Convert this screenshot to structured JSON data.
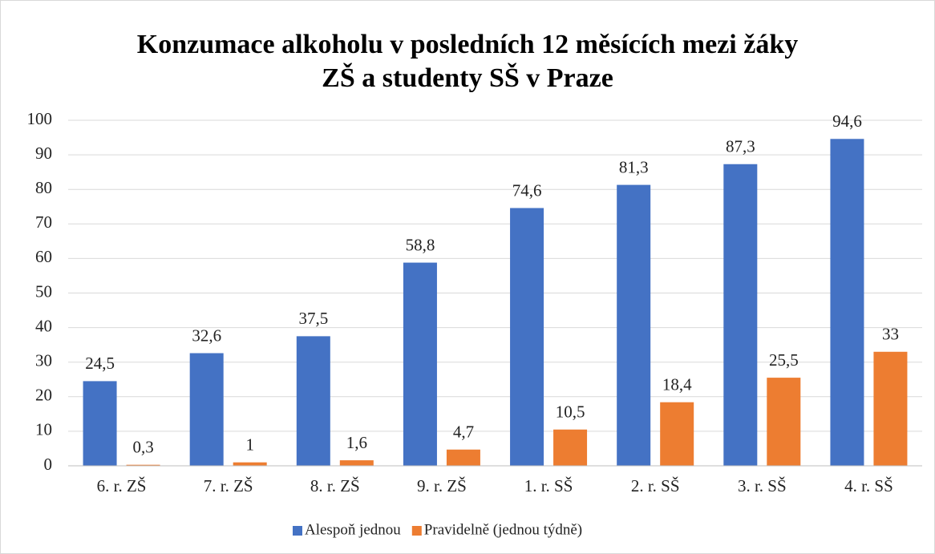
{
  "chart_data": {
    "type": "bar",
    "title": [
      "Konzumace alkoholu v posledních 12 měsících mezi žáky",
      "ZŠ a studenty SŠ v Praze"
    ],
    "categories": [
      "6. r. ZŠ",
      "7. r. ZŠ",
      "8. r. ZŠ",
      "9. r. ZŠ",
      "1. r. SŠ",
      "2. r. SŠ",
      "3. r. SŠ",
      "4. r. SŠ"
    ],
    "series": [
      {
        "name": "Alespoň jednou",
        "color": "#4472c4",
        "values": [
          24.5,
          32.6,
          37.5,
          58.8,
          74.6,
          81.3,
          87.3,
          94.6
        ],
        "value_labels": [
          "24,5",
          "32,6",
          "37,5",
          "58,8",
          "74,6",
          "81,3",
          "87,3",
          "94,6"
        ]
      },
      {
        "name": "Pravidelně (jednou týdně)",
        "color": "#ed7d31",
        "values": [
          0.3,
          1,
          1.6,
          4.7,
          10.5,
          18.4,
          25.5,
          33
        ],
        "value_labels": [
          "0,3",
          "1",
          "1,6",
          "4,7",
          "10,5",
          "18,4",
          "25,5",
          "33"
        ]
      }
    ],
    "ylim": [
      0,
      100
    ],
    "yticks": [
      0,
      10,
      20,
      30,
      40,
      50,
      60,
      70,
      80,
      90,
      100
    ],
    "grid": true,
    "legend": "bottom"
  }
}
